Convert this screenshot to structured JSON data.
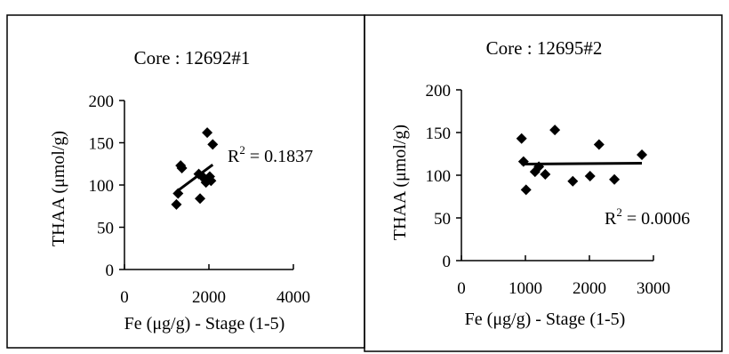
{
  "chart_data": [
    {
      "type": "scatter",
      "title": "Core : 12692#1",
      "xlabel": "Fe (μg/g) - Stage (1-5)",
      "ylabel": "THAA (μmol/g)",
      "xlim": [
        0,
        4000
      ],
      "ylim": [
        0,
        200
      ],
      "xticks": [
        0,
        2000,
        4000
      ],
      "yticks": [
        0,
        50,
        100,
        150,
        200
      ],
      "xtick_labels": [
        "0",
        "2000",
        "4000"
      ],
      "ytick_labels": [
        "0",
        "50",
        "100",
        "150",
        "200"
      ],
      "points": [
        {
          "x": 1230,
          "y": 77
        },
        {
          "x": 1270,
          "y": 90
        },
        {
          "x": 1330,
          "y": 123
        },
        {
          "x": 1360,
          "y": 120
        },
        {
          "x": 1760,
          "y": 113
        },
        {
          "x": 1790,
          "y": 84
        },
        {
          "x": 1850,
          "y": 110
        },
        {
          "x": 1900,
          "y": 107
        },
        {
          "x": 1930,
          "y": 103
        },
        {
          "x": 1960,
          "y": 162
        },
        {
          "x": 2020,
          "y": 110
        },
        {
          "x": 2050,
          "y": 105
        },
        {
          "x": 2090,
          "y": 148
        }
      ],
      "trendline": {
        "x1": 1230,
        "y1": 92,
        "x2": 2090,
        "y2": 124
      },
      "r2_prefix": "R",
      "r2_sup": "2",
      "r2_value": " = 0.1837"
    },
    {
      "type": "scatter",
      "title": "Core : 12695#2",
      "xlabel": "Fe (μg/g) - Stage (1-5)",
      "ylabel": "THAA (μmol/g)",
      "xlim": [
        0,
        3000
      ],
      "ylim": [
        0,
        200
      ],
      "xticks": [
        0,
        1000,
        2000,
        3000
      ],
      "yticks": [
        0,
        50,
        100,
        150,
        200
      ],
      "xtick_labels": [
        "0",
        "1000",
        "2000",
        "3000"
      ],
      "ytick_labels": [
        "0",
        "50",
        "100",
        "150",
        "200"
      ],
      "points": [
        {
          "x": 940,
          "y": 143
        },
        {
          "x": 970,
          "y": 116
        },
        {
          "x": 1010,
          "y": 83
        },
        {
          "x": 1150,
          "y": 104
        },
        {
          "x": 1210,
          "y": 110
        },
        {
          "x": 1310,
          "y": 101
        },
        {
          "x": 1460,
          "y": 153
        },
        {
          "x": 1740,
          "y": 93
        },
        {
          "x": 2010,
          "y": 99
        },
        {
          "x": 2150,
          "y": 136
        },
        {
          "x": 2390,
          "y": 95
        },
        {
          "x": 2820,
          "y": 124
        }
      ],
      "trendline": {
        "x1": 940,
        "y1": 113,
        "x2": 2820,
        "y2": 114
      },
      "r2_prefix": "R",
      "r2_sup": "2",
      "r2_value": " = 0.0006"
    }
  ]
}
